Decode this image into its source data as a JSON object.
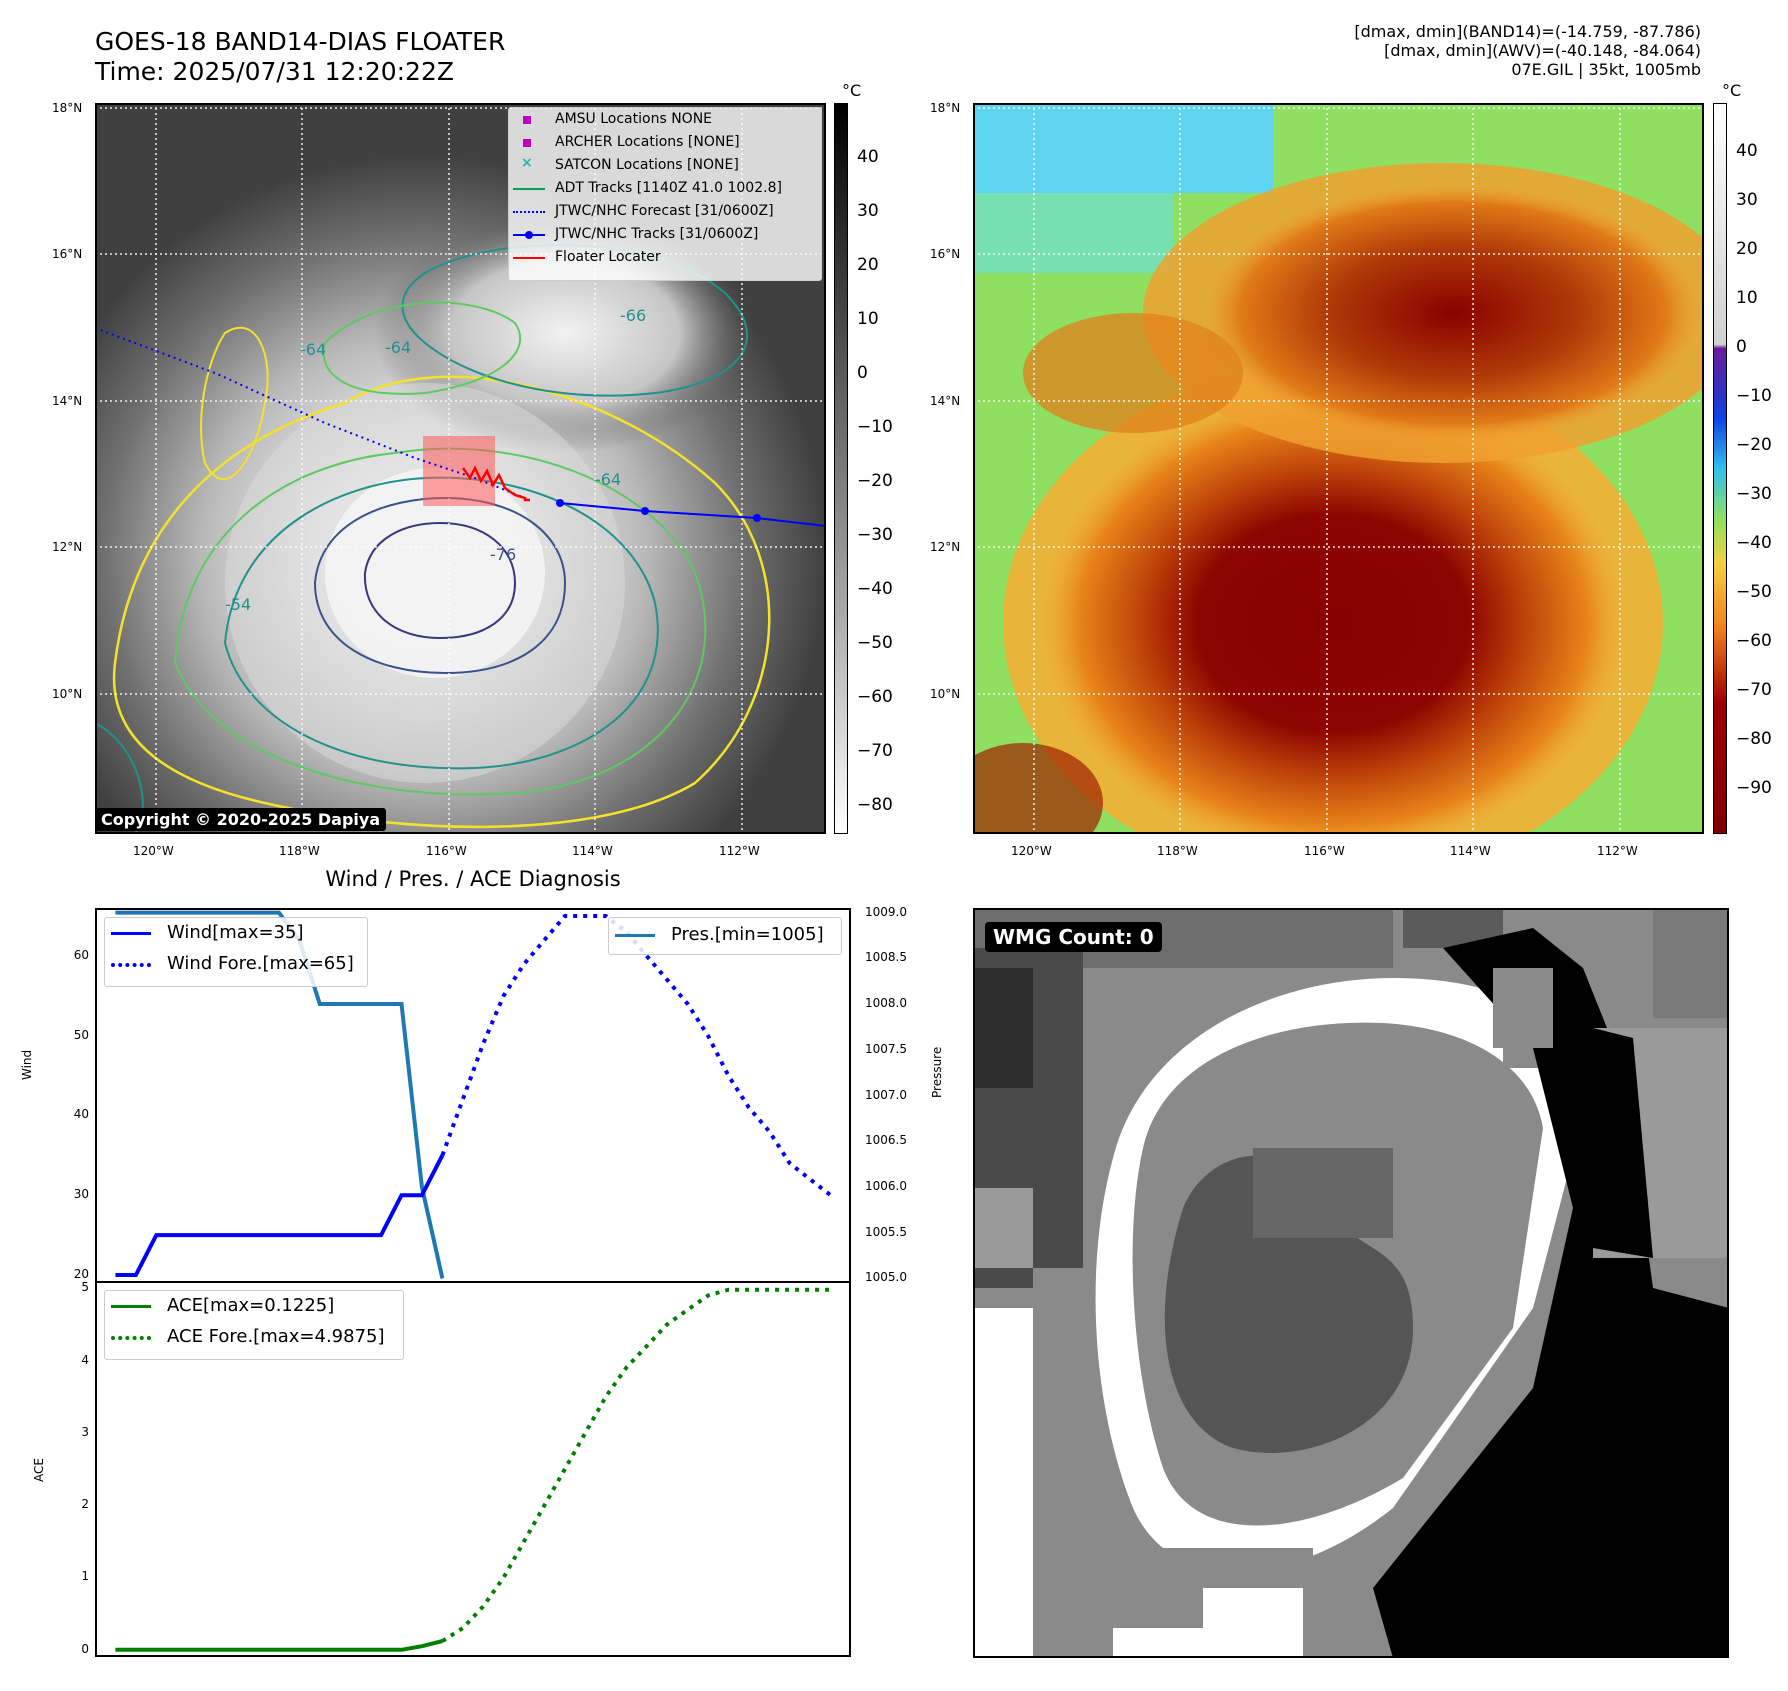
{
  "header": {
    "title": "GOES-18 BAND14-DIAS FLOATER",
    "time": "Time: 2025/07/31 12:20:22Z",
    "info_line1": "[dmax, dmin](BAND14)=(-14.759, -87.786)",
    "info_line2": "[dmax, dmin](AWV)=(-40.148, -84.064)",
    "info_line3": "07E.GIL | 35kt, 1005mb"
  },
  "maps": {
    "lat_labels": [
      "18°N",
      "16°N",
      "14°N",
      "12°N",
      "10°N"
    ],
    "lon_labels": [
      "120°W",
      "118°W",
      "116°W",
      "114°W",
      "112°W"
    ],
    "unit": "°C",
    "copyright": "Copyright © 2020-2025 Dapiya",
    "contour_labels": [
      "-64",
      "-54",
      "-64",
      "-76",
      "-66",
      "-64"
    ],
    "legend": [
      "AMSU Locations NONE",
      "ARCHER Locations [NONE]",
      "SATCON Locations [NONE]",
      "ADT Tracks [1140Z 41.0 1002.8]",
      "JTWC/NHC Forecast [31/0600Z]",
      "JTWC/NHC Tracks [31/0600Z]",
      "Floater Locater"
    ],
    "colors": {
      "amsu": "#c000c0",
      "archer": "#c000c0",
      "satcon": "#1fb8b0",
      "adt": "#00a050",
      "forecast": "#0000ff",
      "tracks": "#0000ff",
      "floater": "#ff0000"
    },
    "colorbar_left_ticks": [
      "40",
      "30",
      "20",
      "10",
      "0",
      "−10",
      "−20",
      "−30",
      "−40",
      "−50",
      "−60",
      "−70",
      "−80"
    ],
    "colorbar_right_ticks": [
      "40",
      "30",
      "20",
      "10",
      "0",
      "−10",
      "−20",
      "−30",
      "−40",
      "−50",
      "−60",
      "−70",
      "−80",
      "−90"
    ]
  },
  "diagnosis": {
    "title": "Wind / Pres. / ACE Diagnosis",
    "wind_ylabel": "Wind",
    "pres_ylabel": "Pressure",
    "ace_ylabel": "ACE",
    "legend_wind": "Wind[max=35]",
    "legend_wind_fore": "Wind Fore.[max=65]",
    "legend_pres": "Pres.[min=1005]",
    "legend_ace": "ACE[max=0.1225]",
    "legend_ace_fore": "ACE Fore.[max=4.9875]"
  },
  "wmg": {
    "label": "WMG Count: 0"
  },
  "chart_data": [
    {
      "type": "line",
      "ylabel": "Wind",
      "ylim": [
        19,
        66
      ],
      "yticks": [
        20,
        30,
        40,
        50,
        60
      ],
      "series": [
        {
          "name": "Wind[max=35]",
          "style": "solid",
          "color": "#0000ff",
          "x": [
            0,
            1,
            2,
            3,
            4,
            5,
            6,
            7,
            8,
            9,
            10,
            11,
            12,
            13,
            14,
            15,
            16
          ],
          "values": [
            20,
            20,
            25,
            25,
            25,
            25,
            25,
            25,
            25,
            25,
            25,
            25,
            25,
            25,
            30,
            30,
            35
          ]
        },
        {
          "name": "Wind Fore.[max=65]",
          "style": "dotted",
          "color": "#0000ff",
          "x": [
            16,
            17,
            18,
            19,
            20,
            21,
            22,
            23,
            24,
            25,
            26,
            27,
            28,
            29,
            30,
            31,
            32,
            33,
            34,
            35
          ],
          "values": [
            35,
            42,
            49,
            55,
            59,
            62,
            65,
            65,
            65,
            63,
            60,
            57,
            54,
            50,
            45,
            41,
            38,
            34,
            32,
            30
          ]
        }
      ]
    },
    {
      "type": "line",
      "ylabel": "Pressure",
      "ylim": [
        1004.95,
        1009.05
      ],
      "yticks": [
        "1005.0",
        "1005.5",
        "1006.0",
        "1006.5",
        "1007.0",
        "1007.5",
        "1008.0",
        "1008.5",
        "1009.0"
      ],
      "series": [
        {
          "name": "Pres.[min=1005]",
          "style": "solid",
          "color": "#1f77b4",
          "x": [
            0,
            1,
            2,
            3,
            4,
            5,
            6,
            7,
            8,
            9,
            10,
            11,
            12,
            13,
            14,
            15,
            16
          ],
          "values": [
            1009,
            1009,
            1009,
            1009,
            1009,
            1009,
            1009,
            1009,
            1009,
            1008.7,
            1008,
            1008,
            1008,
            1008,
            1008,
            1006,
            1005
          ]
        }
      ]
    },
    {
      "type": "line",
      "ylabel": "ACE",
      "ylim": [
        -0.1,
        5.1
      ],
      "yticks": [
        0,
        1,
        2,
        3,
        4,
        5
      ],
      "series": [
        {
          "name": "ACE[max=0.1225]",
          "style": "solid",
          "color": "#008000",
          "x": [
            0,
            2,
            4,
            6,
            8,
            10,
            12,
            14,
            15,
            16
          ],
          "values": [
            0,
            0,
            0,
            0,
            0,
            0,
            0,
            0,
            0.05,
            0.12
          ]
        },
        {
          "name": "ACE Fore.[max=4.9875]",
          "style": "dotted",
          "color": "#008000",
          "x": [
            16,
            17,
            18,
            19,
            20,
            21,
            22,
            23,
            24,
            25,
            26,
            27,
            28,
            29,
            30,
            31,
            32,
            33,
            34,
            35
          ],
          "values": [
            0.12,
            0.3,
            0.6,
            1.0,
            1.5,
            2.0,
            2.5,
            3.0,
            3.5,
            3.9,
            4.2,
            4.5,
            4.7,
            4.9,
            4.98,
            4.98,
            4.98,
            4.98,
            4.98,
            4.98
          ]
        }
      ]
    }
  ]
}
